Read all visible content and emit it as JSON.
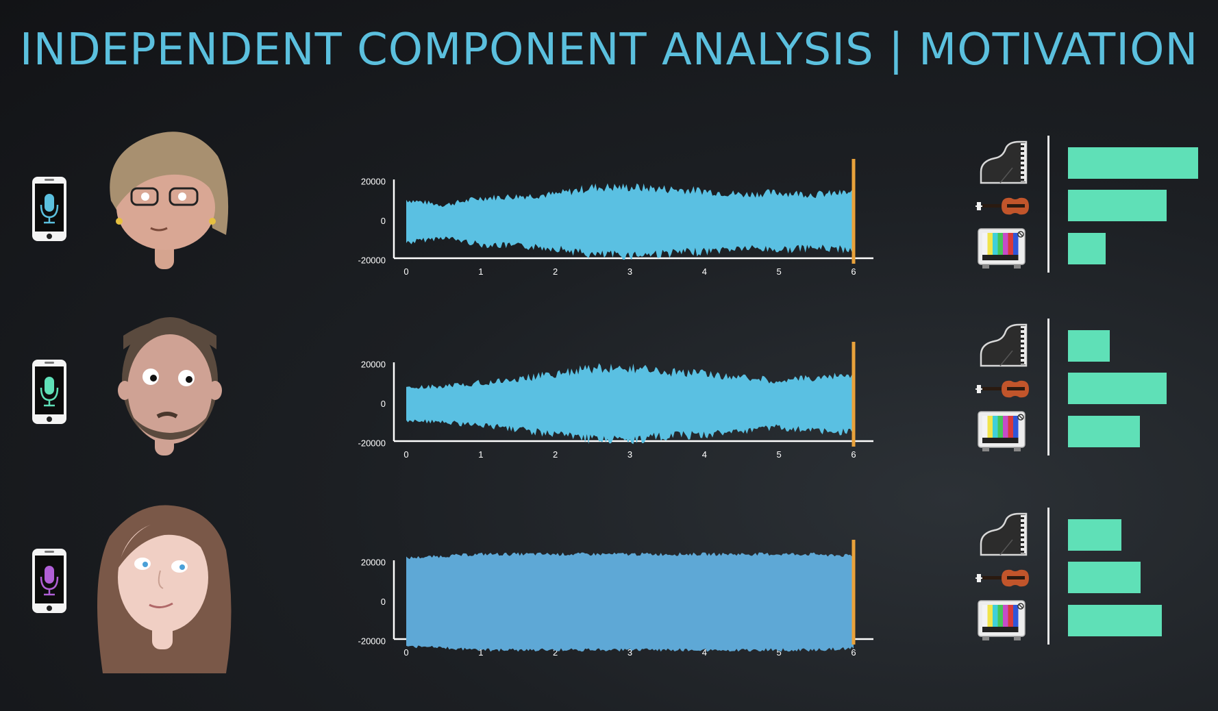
{
  "title": "INDEPENDENT COMPONENT ANALYSIS | MOTIVATION",
  "colors": {
    "title": "#5bc0de",
    "waveform_light": "#5ac0e2",
    "waveform_dark": "#5ea8d6",
    "cursor": "#e9a23b",
    "bar": "#5fe0b7",
    "axis": "#ffffff"
  },
  "chart_data": [
    {
      "type": "area",
      "x_ticks": [
        "0",
        "1",
        "2",
        "3",
        "4",
        "5",
        "6"
      ],
      "y_ticks": [
        "20000",
        "0",
        "-20000"
      ],
      "xlim": [
        0,
        6
      ],
      "ylim": [
        -30000,
        30000
      ],
      "cursor_x": 6,
      "envelope": {
        "x": [
          0,
          0.5,
          1,
          1.5,
          2,
          2.5,
          3,
          3.5,
          4,
          4.5,
          5,
          5.5,
          6
        ],
        "amplitude": [
          12000,
          9000,
          13000,
          14000,
          15000,
          19000,
          19000,
          18000,
          17000,
          15000,
          16000,
          15000,
          16000
        ]
      },
      "color": "waveform_light"
    },
    {
      "type": "area",
      "x_ticks": [
        "0",
        "1",
        "2",
        "3",
        "4",
        "5",
        "6"
      ],
      "y_ticks": [
        "20000",
        "0",
        "-20000"
      ],
      "xlim": [
        0,
        6
      ],
      "ylim": [
        -30000,
        30000
      ],
      "cursor_x": 6,
      "envelope": {
        "x": [
          0,
          0.5,
          1,
          1.5,
          2,
          2.5,
          3,
          3.5,
          4,
          4.5,
          5,
          5.5,
          6
        ],
        "amplitude": [
          9000,
          10000,
          12000,
          14000,
          17000,
          20000,
          20000,
          18000,
          17000,
          15000,
          13000,
          15000,
          16000
        ]
      },
      "color": "waveform_light"
    },
    {
      "type": "area",
      "x_ticks": [
        "0",
        "1",
        "2",
        "3",
        "4",
        "5",
        "6"
      ],
      "y_ticks": [
        "20000",
        "0",
        "-20000"
      ],
      "xlim": [
        0,
        6
      ],
      "ylim": [
        -30000,
        30000
      ],
      "cursor_x": 6,
      "envelope": {
        "x": [
          0,
          0.5,
          1,
          1.5,
          2,
          2.5,
          3,
          3.5,
          4,
          4.5,
          5,
          5.5,
          6
        ],
        "amplitude": [
          23000,
          24000,
          25000,
          25000,
          25000,
          25000,
          25000,
          25000,
          25000,
          25000,
          25000,
          25000,
          24000
        ]
      },
      "color": "waveform_dark"
    }
  ],
  "rows": [
    {
      "mic_color": "#5bc0de",
      "person": "woman-with-glasses",
      "bars": [
        {
          "source": "piano",
          "value": 1.0
        },
        {
          "source": "violin",
          "value": 0.76
        },
        {
          "source": "tv",
          "value": 0.29
        }
      ]
    },
    {
      "mic_color": "#5fe0b7",
      "person": "bearded-man",
      "bars": [
        {
          "source": "piano",
          "value": 0.32
        },
        {
          "source": "violin",
          "value": 0.76
        },
        {
          "source": "tv",
          "value": 0.55
        }
      ]
    },
    {
      "mic_color": "#b05fd6",
      "person": "long-haired-woman",
      "bars": [
        {
          "source": "piano",
          "value": 0.41
        },
        {
          "source": "violin",
          "value": 0.56
        },
        {
          "source": "tv",
          "value": 0.72
        }
      ]
    }
  ],
  "icons": {
    "phone": "smartphone-microphone-icon",
    "piano": "grand-piano-icon",
    "violin": "violin-icon",
    "tv": "television-icon"
  }
}
